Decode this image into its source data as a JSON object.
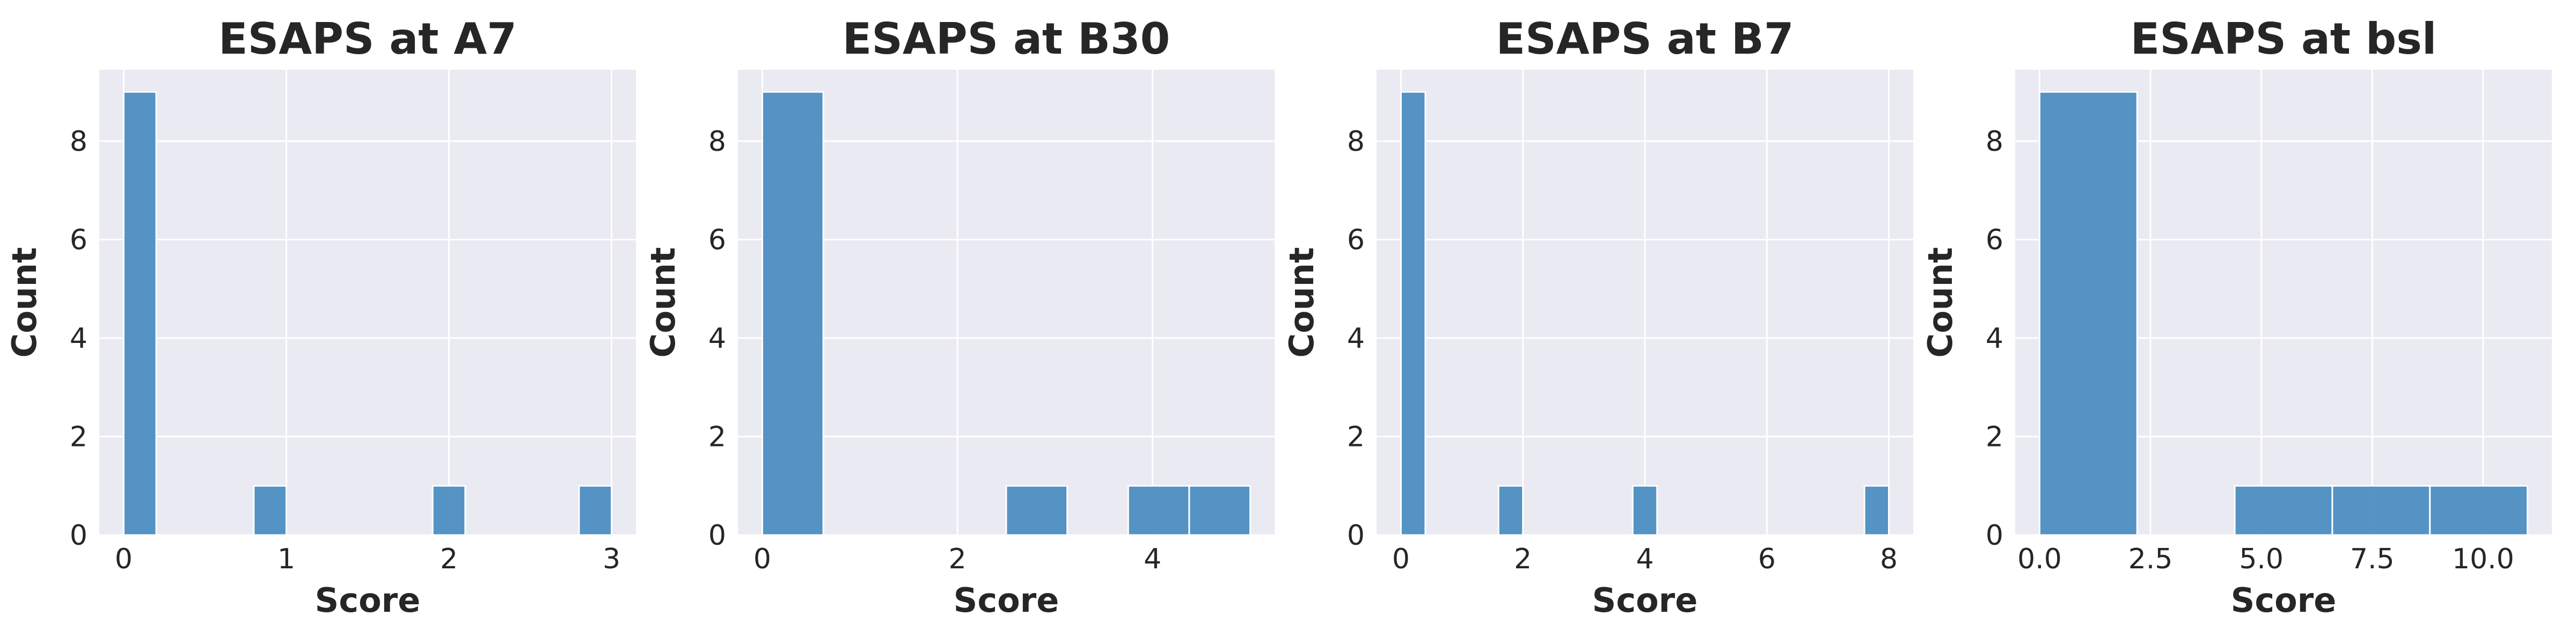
{
  "chart_data": [
    {
      "type": "bar",
      "title": "ESAPS at A7",
      "xlabel": "Score",
      "ylabel": "Count",
      "xlim": [
        -0.15,
        3.15
      ],
      "ylim": [
        0,
        9.45
      ],
      "xticks": [
        0,
        1,
        2,
        3
      ],
      "xtick_labels": [
        "0",
        "1",
        "2",
        "3"
      ],
      "yticks": [
        0,
        2,
        4,
        6,
        8
      ],
      "ytick_labels": [
        "0",
        "2",
        "4",
        "6",
        "8"
      ],
      "grid": true,
      "bins": [
        {
          "x0": 0.0,
          "x1": 0.2,
          "count": 9
        },
        {
          "x0": 0.8,
          "x1": 1.0,
          "count": 1
        },
        {
          "x0": 1.9,
          "x1": 2.1,
          "count": 1
        },
        {
          "x0": 2.8,
          "x1": 3.0,
          "count": 1
        }
      ]
    },
    {
      "type": "bar",
      "title": "ESAPS at B30",
      "xlabel": "Score",
      "ylabel": "Count",
      "xlim": [
        -0.25,
        5.25
      ],
      "ylim": [
        0,
        9.45
      ],
      "xticks": [
        0,
        2,
        4
      ],
      "xtick_labels": [
        "0",
        "2",
        "4"
      ],
      "yticks": [
        0,
        2,
        4,
        6,
        8
      ],
      "ytick_labels": [
        "0",
        "2",
        "4",
        "6",
        "8"
      ],
      "grid": true,
      "bins": [
        {
          "x0": 0.0,
          "x1": 0.625,
          "count": 9
        },
        {
          "x0": 2.5,
          "x1": 3.125,
          "count": 1
        },
        {
          "x0": 3.75,
          "x1": 4.375,
          "count": 1
        },
        {
          "x0": 4.375,
          "x1": 5.0,
          "count": 1
        }
      ]
    },
    {
      "type": "bar",
      "title": "ESAPS at B7",
      "xlabel": "Score",
      "ylabel": "Count",
      "xlim": [
        -0.4,
        8.4
      ],
      "ylim": [
        0,
        9.45
      ],
      "xticks": [
        0,
        2,
        4,
        6,
        8
      ],
      "xtick_labels": [
        "0",
        "2",
        "4",
        "6",
        "8"
      ],
      "grid": true,
      "yticks": [
        0,
        2,
        4,
        6,
        8
      ],
      "ytick_labels": [
        "0",
        "2",
        "4",
        "6",
        "8"
      ],
      "bins": [
        {
          "x0": 0.0,
          "x1": 0.4,
          "count": 9
        },
        {
          "x0": 1.6,
          "x1": 2.0,
          "count": 1
        },
        {
          "x0": 3.8,
          "x1": 4.2,
          "count": 1
        },
        {
          "x0": 7.6,
          "x1": 8.0,
          "count": 1
        }
      ]
    },
    {
      "type": "bar",
      "title": "ESAPS at bsl",
      "xlabel": "Score",
      "ylabel": "Count",
      "xlim": [
        -0.55,
        11.55
      ],
      "ylim": [
        0,
        9.45
      ],
      "xticks": [
        0,
        2.5,
        5,
        7.5,
        10
      ],
      "xtick_labels": [
        "0.0",
        "2.5",
        "5.0",
        "7.5",
        "10.0"
      ],
      "yticks": [
        0,
        2,
        4,
        6,
        8
      ],
      "ytick_labels": [
        "0",
        "2",
        "4",
        "6",
        "8"
      ],
      "grid": true,
      "bins": [
        {
          "x0": 0.0,
          "x1": 2.2,
          "count": 9
        },
        {
          "x0": 4.4,
          "x1": 6.6,
          "count": 1
        },
        {
          "x0": 6.6,
          "x1": 8.8,
          "count": 1
        },
        {
          "x0": 8.8,
          "x1": 11.0,
          "count": 1
        }
      ]
    }
  ]
}
